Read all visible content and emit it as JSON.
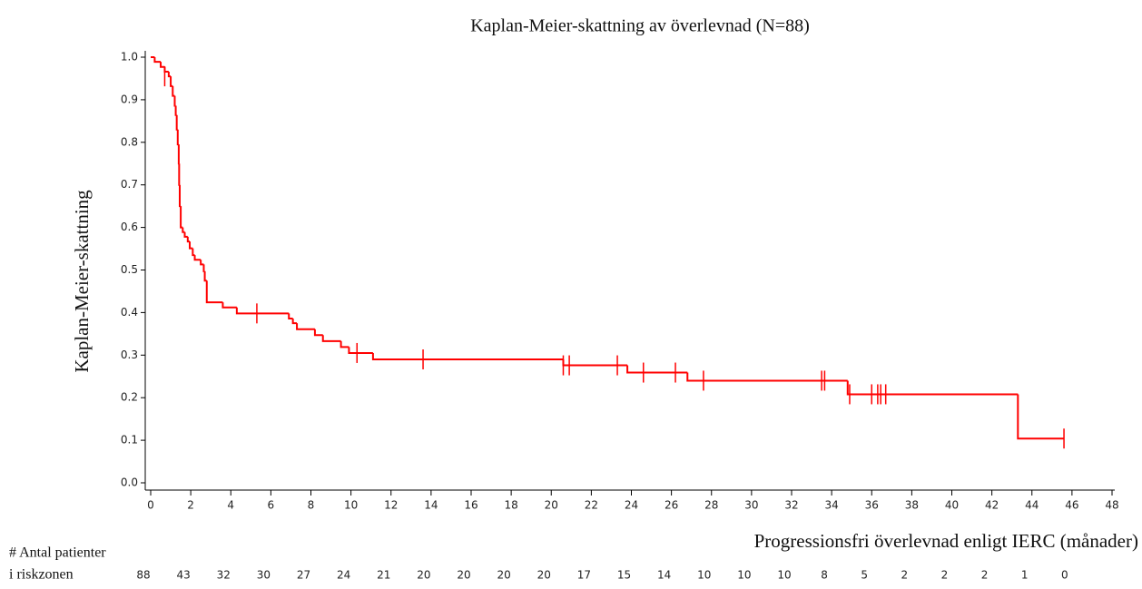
{
  "chart_data": {
    "type": "step",
    "title": "Kaplan-Meier-skattning av överlevnad (N=88)",
    "y_label": "Kaplan-Meier-skattning",
    "x_label": "Progressionsfri överlevnad enligt IERC (månader)",
    "color": "#ff0000",
    "xlim": [
      0,
      48
    ],
    "ylim": [
      0,
      1
    ],
    "xticks": [
      0,
      2,
      4,
      6,
      8,
      10,
      12,
      14,
      16,
      18,
      20,
      22,
      24,
      26,
      28,
      30,
      32,
      34,
      36,
      38,
      40,
      42,
      44,
      46,
      48
    ],
    "yticks": [
      {
        "value": 0,
        "label": "0.0"
      },
      0.1,
      0.2,
      0.3,
      0.4,
      0.5,
      0.6,
      0.7,
      0.8,
      0.9,
      {
        "value": 1,
        "label": "1.0"
      }
    ],
    "series": [
      {
        "x": [
          0,
          0.2,
          0.5,
          0.7,
          0.9,
          1.0,
          1.1,
          1.2,
          1.25,
          1.3,
          1.35,
          1.4,
          1.42,
          1.45,
          1.5,
          1.6,
          1.7,
          1.85,
          1.95,
          2.1,
          2.2,
          2.5,
          2.65,
          2.7,
          2.8,
          3.6,
          4.3,
          6.9,
          7.1,
          7.3,
          8.2,
          8.6,
          9.5,
          9.9,
          11.1,
          20.6,
          23.8,
          26.8,
          34.8,
          43.3,
          45.6
        ],
        "values": [
          1.0,
          0.989,
          0.977,
          0.966,
          0.955,
          0.932,
          0.909,
          0.886,
          0.864,
          0.83,
          0.795,
          0.75,
          0.7,
          0.65,
          0.6,
          0.589,
          0.578,
          0.567,
          0.551,
          0.535,
          0.524,
          0.513,
          0.497,
          0.475,
          0.424,
          0.412,
          0.398,
          0.386,
          0.375,
          0.361,
          0.347,
          0.333,
          0.319,
          0.305,
          0.29,
          0.276,
          0.259,
          0.24,
          0.208,
          0.104,
          0.104
        ]
      }
    ],
    "censored": {
      "x": [
        0.7,
        5.3,
        10.3,
        13.6,
        20.6,
        20.9,
        23.3,
        24.6,
        26.2,
        27.6,
        33.5,
        33.65,
        34.9,
        36.0,
        36.3,
        36.45,
        36.7,
        45.6
      ],
      "values": [
        0.955,
        0.398,
        0.305,
        0.29,
        0.276,
        0.276,
        0.276,
        0.259,
        0.259,
        0.24,
        0.24,
        0.24,
        0.208,
        0.208,
        0.208,
        0.208,
        0.208,
        0.104
      ]
    },
    "at_risk": {
      "label_lines": [
        "# Antal patienter",
        "i riskzonen"
      ],
      "x": [
        0,
        2,
        4,
        6,
        8,
        10,
        12,
        14,
        16,
        18,
        20,
        22,
        24,
        26,
        28,
        30,
        32,
        34,
        36,
        38,
        40,
        42,
        44,
        46
      ],
      "values": [
        88,
        43,
        32,
        30,
        27,
        24,
        21,
        20,
        20,
        20,
        20,
        17,
        15,
        14,
        10,
        10,
        10,
        8,
        5,
        2,
        2,
        2,
        1,
        0
      ]
    }
  }
}
